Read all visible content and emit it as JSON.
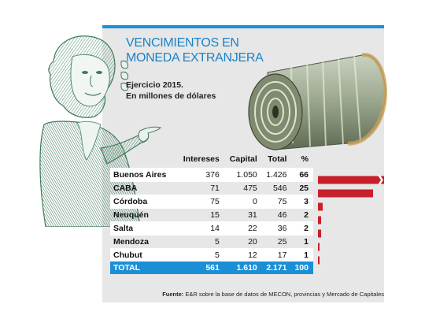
{
  "header": {
    "title_line1": "VENCIMIENTOS EN",
    "title_line2": "MONEDA EXTRANJERA",
    "subtitle_line1": "Ejercicio 2015.",
    "subtitle_line2": "En millones de dólares"
  },
  "table": {
    "columns": [
      "",
      "Intereses",
      "Capital",
      "Total",
      "%"
    ],
    "rows": [
      {
        "region": "Buenos Aires",
        "intereses": "376",
        "capital": "1.050",
        "total": "1.426",
        "pct": "66"
      },
      {
        "region": "CABA",
        "intereses": "71",
        "capital": "475",
        "total": "546",
        "pct": "25"
      },
      {
        "region": "Córdoba",
        "intereses": "75",
        "capital": "0",
        "total": "75",
        "pct": "3"
      },
      {
        "region": "Neuquén",
        "intereses": "15",
        "capital": "31",
        "total": "46",
        "pct": "2"
      },
      {
        "region": "Salta",
        "intereses": "14",
        "capital": "22",
        "total": "36",
        "pct": "2"
      },
      {
        "region": "Mendoza",
        "intereses": "5",
        "capital": "20",
        "total": "25",
        "pct": "1"
      },
      {
        "region": "Chubut",
        "intereses": "5",
        "capital": "12",
        "total": "17",
        "pct": "1"
      }
    ],
    "total": {
      "region": "TOTAL",
      "intereses": "561",
      "capital": "1.610",
      "total": "2.171",
      "pct": "100"
    }
  },
  "chart_data": {
    "type": "bar",
    "orientation": "horizontal",
    "categories": [
      "Buenos Aires",
      "CABA",
      "Córdoba",
      "Neuquén",
      "Salta",
      "Mendoza",
      "Chubut"
    ],
    "values": [
      66,
      25,
      3,
      2,
      2,
      1,
      1
    ],
    "axis_break_on_first_bar": true,
    "bar_color": "#c8202a"
  },
  "footer": {
    "source_label": "Fuente:",
    "source_text": "E&R sobre la base de datos de MECON, provincias y Mercado de Capitales"
  },
  "colors": {
    "accent": "#1b8fd6",
    "title": "#1b83c6",
    "bar": "#c8202a",
    "panel": "#e7e7e8"
  }
}
